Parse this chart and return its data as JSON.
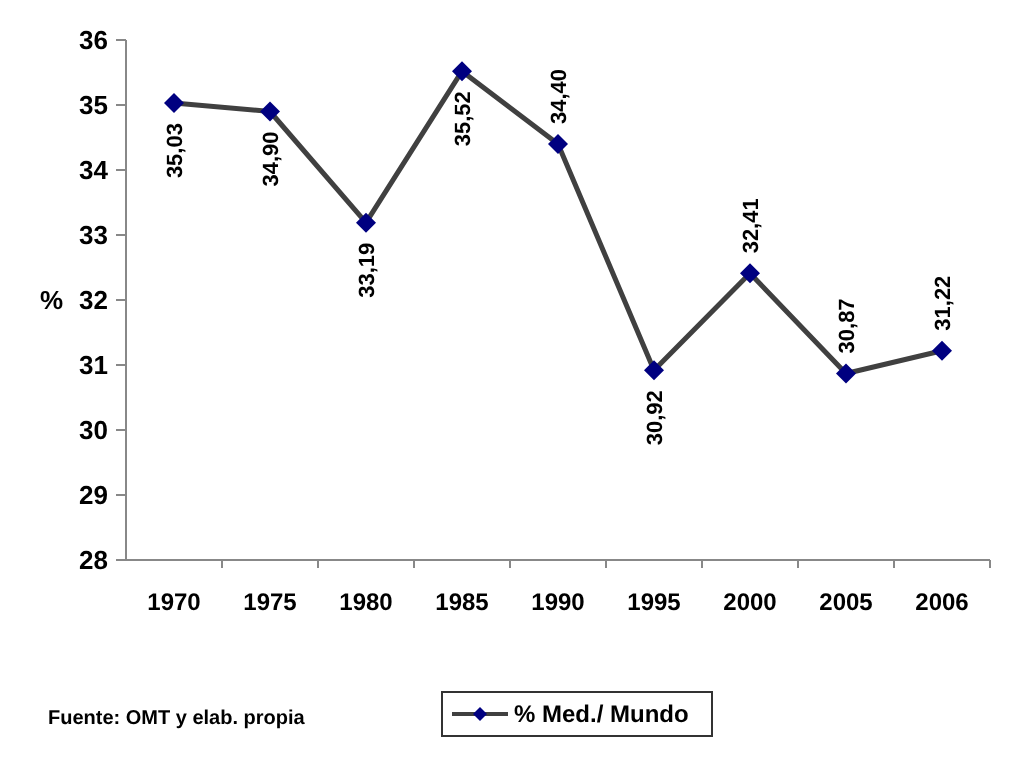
{
  "chart_data": {
    "type": "line",
    "categories": [
      "1970",
      "1975",
      "1980",
      "1985",
      "1990",
      "1995",
      "2000",
      "2005",
      "2006"
    ],
    "series": [
      {
        "name": "% Med./ Mundo",
        "color": "#000080",
        "values": [
          35.03,
          34.9,
          33.19,
          35.52,
          34.4,
          30.92,
          32.41,
          30.87,
          31.22
        ]
      }
    ],
    "value_labels": [
      "35,03",
      "34,90",
      "33,19",
      "35,52",
      "34,40",
      "30,92",
      "32,41",
      "30,87",
      "31,22"
    ],
    "ylabel": "%",
    "ylim": [
      28,
      36
    ],
    "yticks": [
      28,
      29,
      30,
      31,
      32,
      33,
      34,
      35,
      36
    ],
    "marker": "diamond",
    "legend": "bottom",
    "grid": false,
    "annotations": [
      "Fuente: OMT y elab. propia"
    ]
  }
}
